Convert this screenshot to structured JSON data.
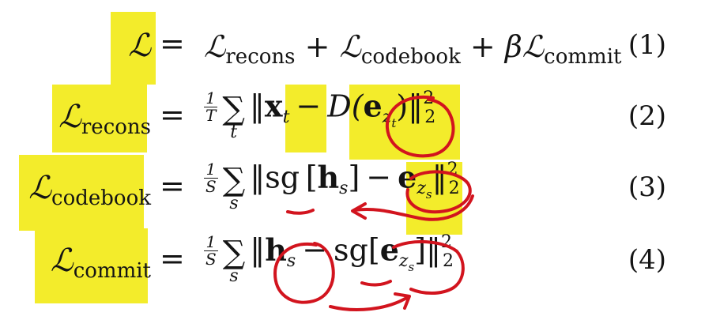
{
  "highlight_color": "#f3ec2b",
  "annotation_color": "#d2141e",
  "equations": [
    {
      "lhs": "ℒ",
      "rhs_parts": [
        "ℒ",
        "recons",
        " + ",
        "ℒ",
        "codebook",
        " + ",
        "β",
        "ℒ",
        "commit"
      ],
      "number": "(1)"
    },
    {
      "lhs": "ℒ",
      "lhs_sub": "recons",
      "frac_num": "1",
      "frac_den": "T",
      "sum_index": "t",
      "norm_open": "‖",
      "x": "x",
      "x_sub": "t",
      "minus": "−",
      "decoder": "D(",
      "e": "e",
      "e_sub": "z",
      "e_subsub": "t",
      "close": ")‖",
      "sup": "2",
      "subnorm": "2",
      "number": "(2)"
    },
    {
      "lhs": "ℒ",
      "lhs_sub": "codebook",
      "frac_num": "1",
      "frac_den": "S",
      "sum_index": "s",
      "norm_open": "‖",
      "sg": "sg",
      "bracket_open": "[",
      "h": "h",
      "h_sub": "s",
      "bracket_close": "]",
      "minus": "−",
      "e": "e",
      "e_sub": "z",
      "e_subsub": "s",
      "close": "‖",
      "sup": "2",
      "subnorm": "2",
      "number": "(3)"
    },
    {
      "lhs": "ℒ",
      "lhs_sub": "commit",
      "frac_num": "1",
      "frac_den": "S",
      "sum_index": "s",
      "norm_open": "‖",
      "h": "h",
      "h_sub": "s",
      "minus": "−",
      "sg": "sg",
      "bracket_open": "[",
      "e": "e",
      "e_sub": "z",
      "e_subsub": "s",
      "close": "]‖",
      "sup": "2",
      "subnorm": "2",
      "number": "(4)"
    }
  ]
}
